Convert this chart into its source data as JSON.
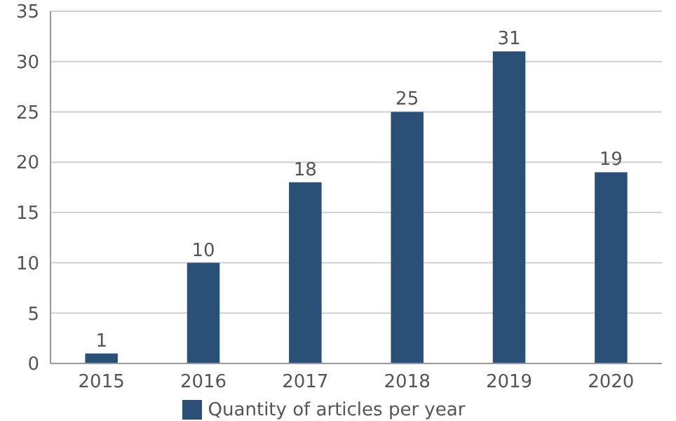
{
  "chart_data": {
    "type": "bar",
    "categories": [
      "2015",
      "2016",
      "2017",
      "2018",
      "2019",
      "2020"
    ],
    "series": [
      {
        "name": "Quantity of articles per year",
        "color": "#2a5078",
        "values": [
          1,
          10,
          18,
          25,
          31,
          19
        ]
      }
    ],
    "ylim": [
      0,
      35
    ],
    "yticks": [
      0,
      5,
      10,
      15,
      20,
      25,
      30,
      35
    ],
    "grid": "y",
    "legend": "bottom",
    "data_labels": true
  }
}
